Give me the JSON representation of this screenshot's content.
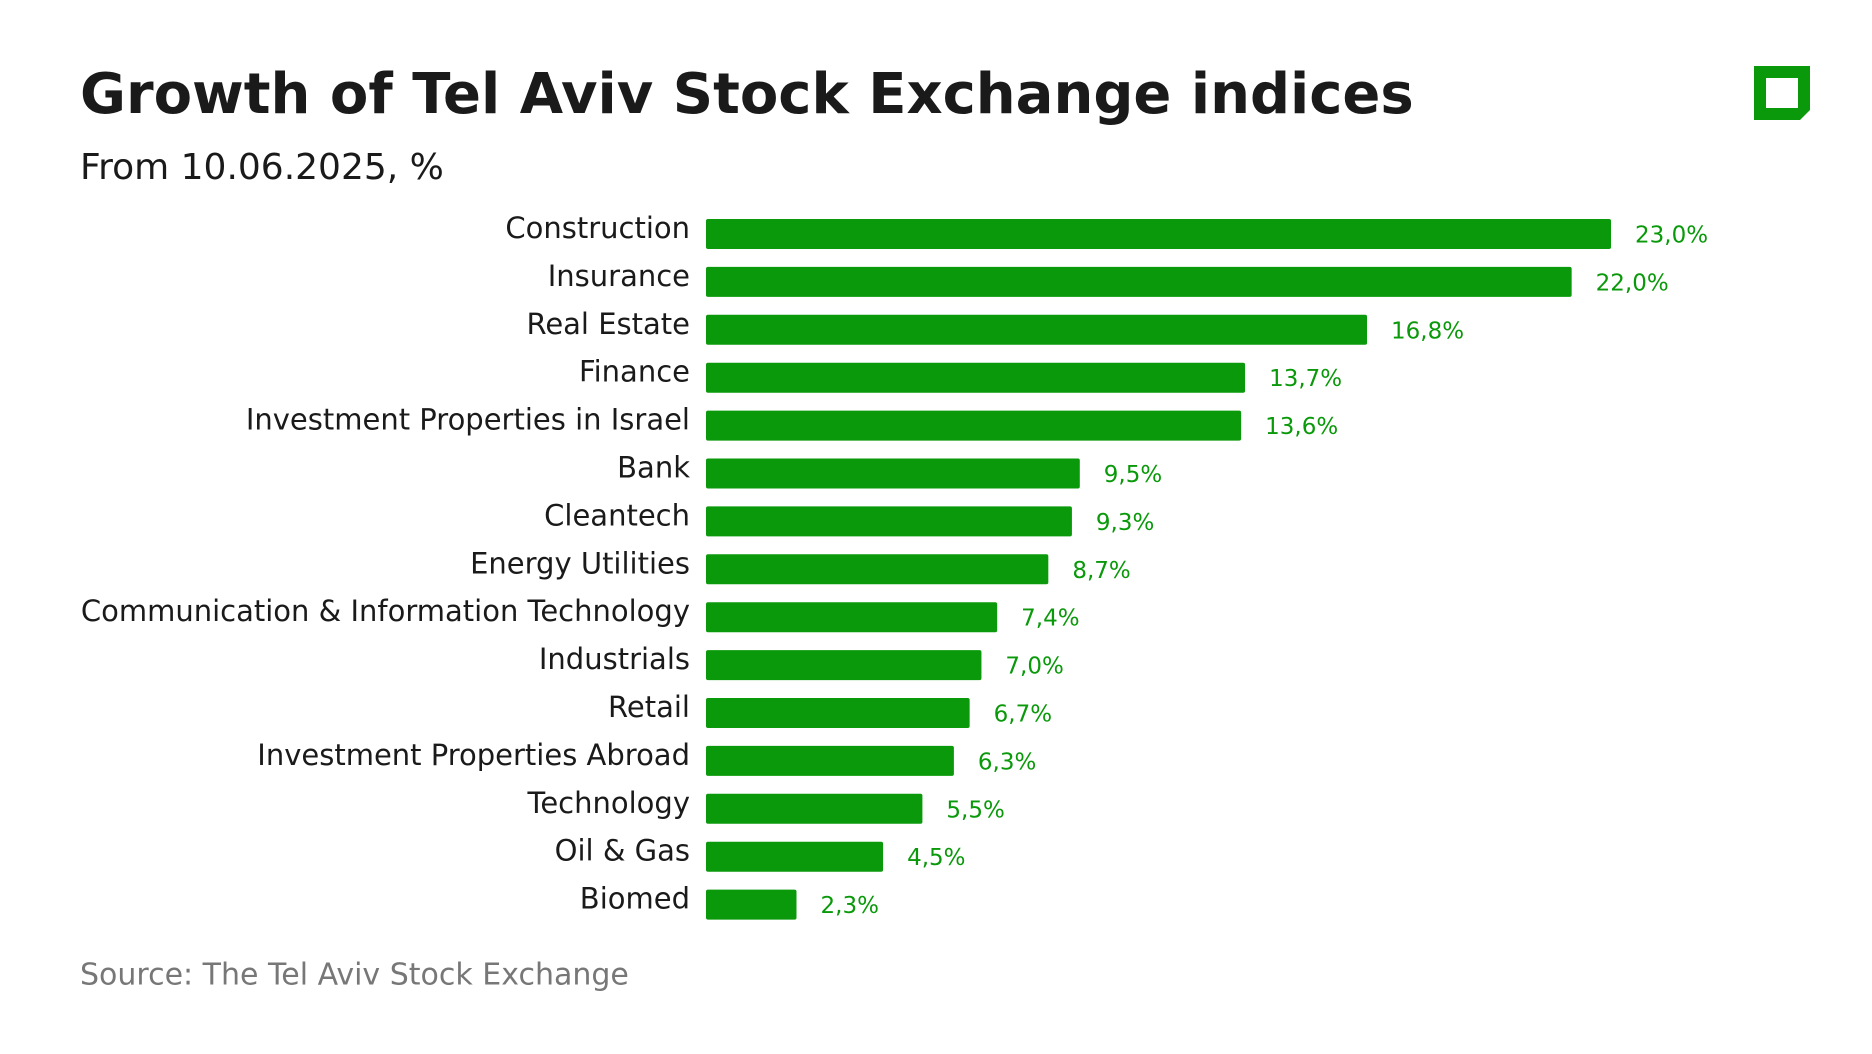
{
  "chart_data": {
    "type": "bar",
    "title": "Growth of Tel Aviv Stock Exchange indices",
    "subtitle": "From 10.06.2025, %",
    "source": "Source: The Tel Aviv Stock Exchange",
    "categories": [
      "Construction",
      "Insurance",
      "Real Estate",
      "Finance",
      "Investment Properties in Israel",
      "Bank",
      "Cleantech",
      "Energy Utilities",
      "Communication & Information Technology",
      "Industrials",
      "Retail",
      "Investment Properties Abroad",
      "Technology",
      "Oil & Gas",
      "Biomed"
    ],
    "values": [
      23.0,
      22.0,
      16.8,
      13.7,
      13.6,
      9.5,
      9.3,
      8.7,
      7.4,
      7.0,
      6.7,
      6.3,
      5.5,
      4.5,
      2.3
    ],
    "value_labels": [
      "23,0%",
      "22,0%",
      "16,8%",
      "13,7%",
      "13,6%",
      "9,5%",
      "9,3%",
      "8,7%",
      "7,4%",
      "7,0%",
      "6,7%",
      "6,3%",
      "5,5%",
      "4,5%",
      "2,3%"
    ],
    "color": "#0a990a"
  }
}
